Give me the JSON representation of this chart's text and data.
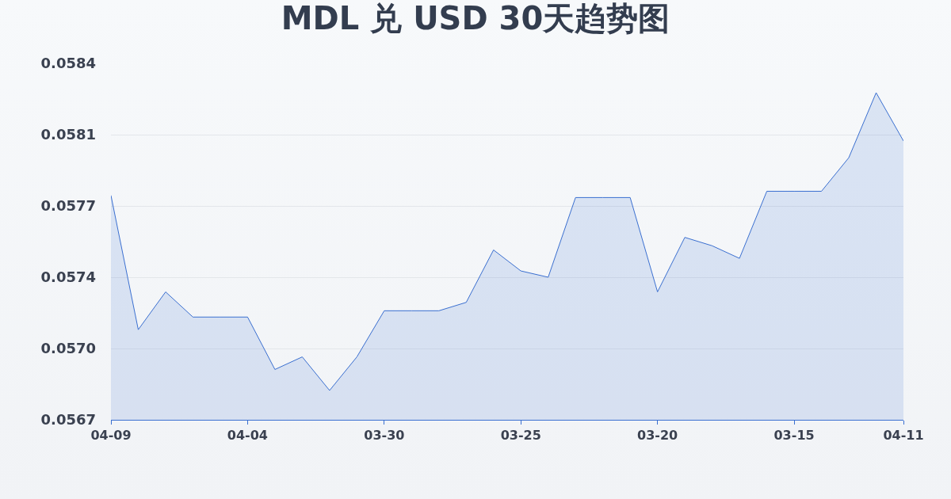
{
  "chart_data": {
    "type": "area",
    "title": "MDL 兑 USD 30天趋势图",
    "categories": [
      "04-09",
      null,
      null,
      null,
      null,
      "04-04",
      null,
      null,
      null,
      null,
      "03-30",
      null,
      null,
      null,
      null,
      "03-25",
      null,
      null,
      null,
      null,
      "03-20",
      null,
      null,
      null,
      null,
      "03-15",
      null,
      null,
      null,
      "04-11"
    ],
    "series": [
      {
        "color": "#3a6fd0",
        "values": [
          0.05777,
          0.05713,
          0.05731,
          0.05719,
          0.05719,
          0.05719,
          0.05694,
          0.057,
          0.05684,
          0.057,
          0.05722,
          0.05722,
          0.05722,
          0.05726,
          0.05751,
          0.05741,
          0.05738,
          0.05776,
          0.05776,
          0.05776,
          0.05731,
          0.05757,
          0.05753,
          0.05747,
          0.05779,
          0.05779,
          0.05779,
          0.05795,
          0.05826,
          0.05803
        ]
      }
    ],
    "ylim": [
      0.0567,
      0.0584
    ],
    "yticks": [
      {
        "value": 0.0567,
        "label": "0.0567"
      },
      {
        "value": 0.05704,
        "label": "0.0570"
      },
      {
        "value": 0.05738,
        "label": "0.0574"
      },
      {
        "value": 0.05772,
        "label": "0.0577"
      },
      {
        "value": 0.05806,
        "label": "0.0581"
      },
      {
        "value": 0.0584,
        "label": "0.0584"
      }
    ],
    "grid": "y"
  }
}
